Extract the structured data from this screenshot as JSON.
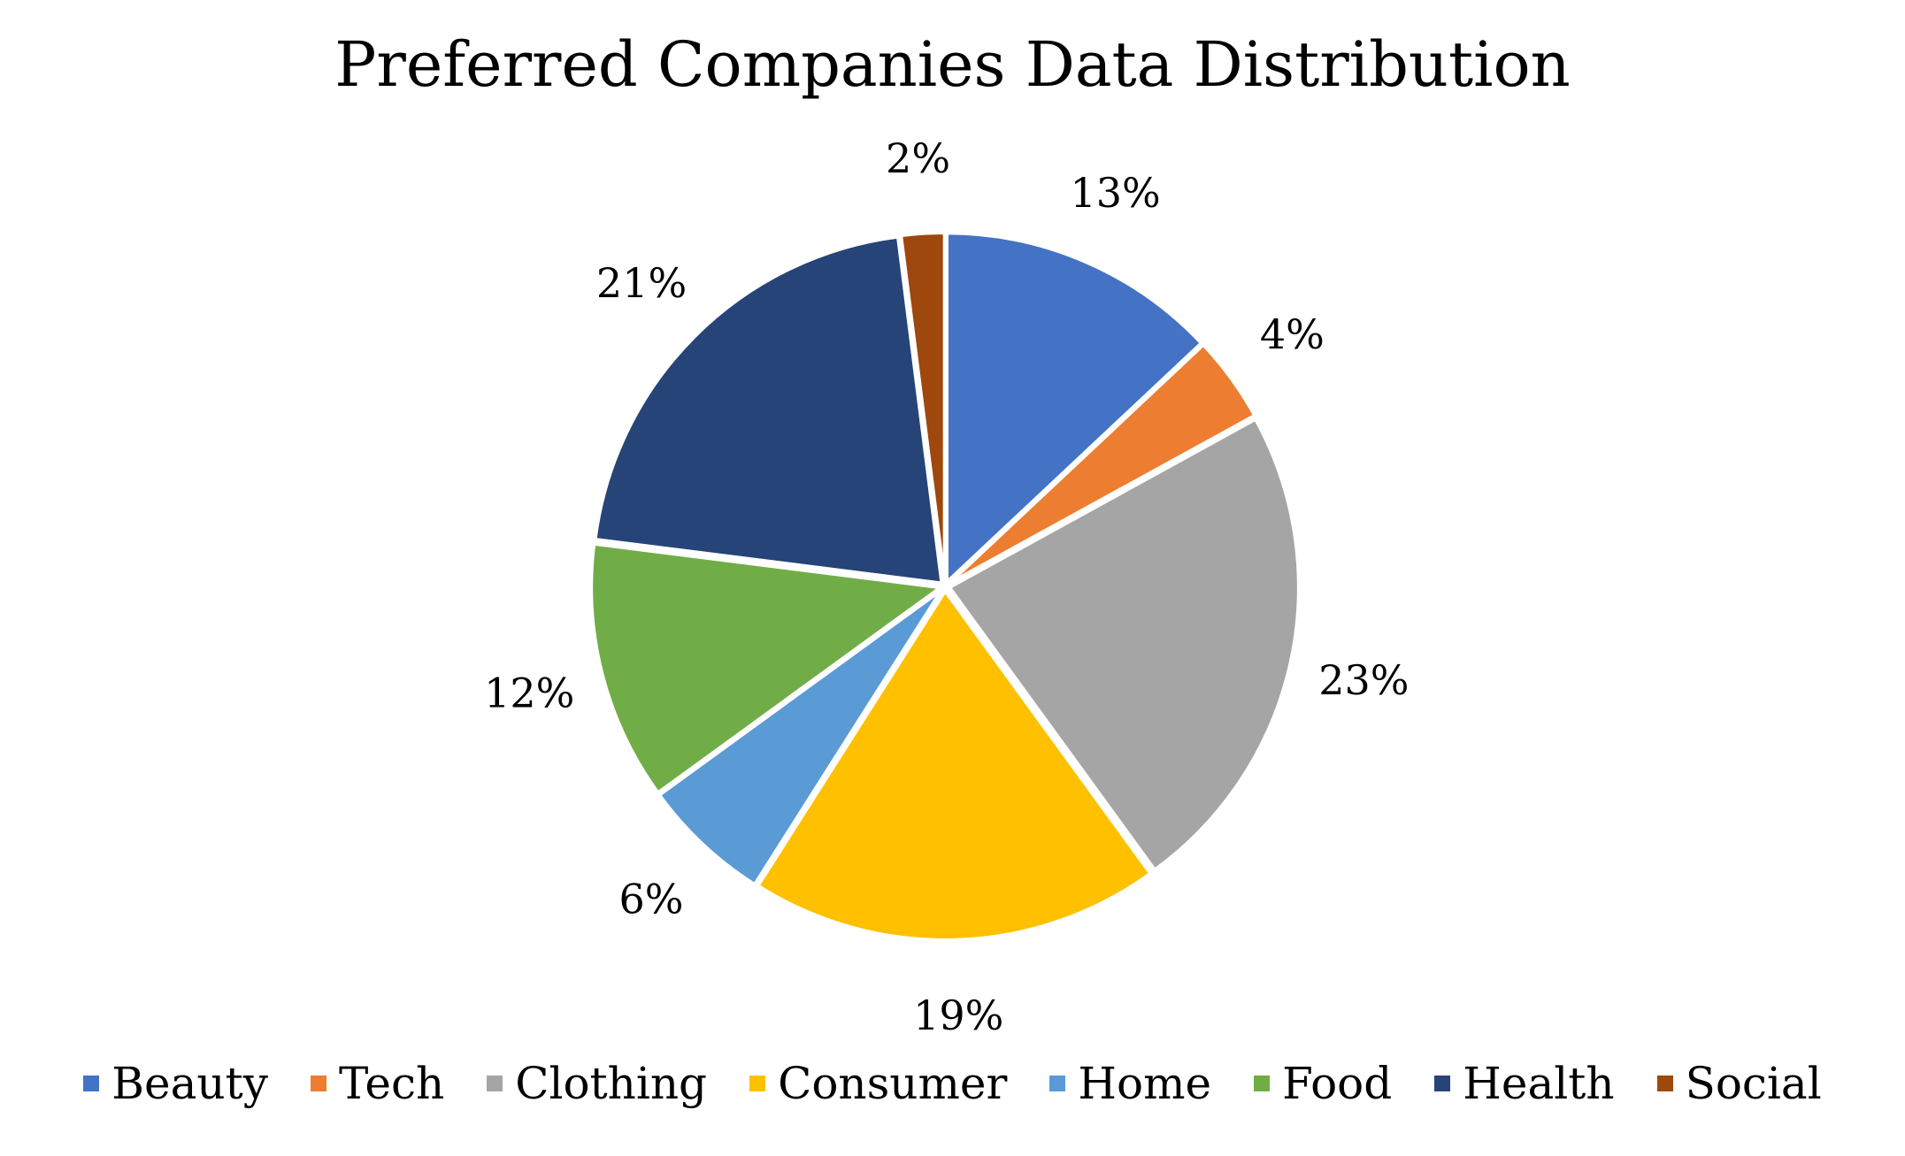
{
  "chart_data": {
    "type": "pie",
    "title": "Preferred Companies Data Distribution",
    "categories": [
      "Beauty",
      "Tech",
      "Clothing",
      "Consumer",
      "Home",
      "Food",
      "Health",
      "Social"
    ],
    "values": [
      13,
      4,
      23,
      19,
      6,
      12,
      21,
      2
    ],
    "labels": [
      "13%",
      "4%",
      "23%",
      "19%",
      "6%",
      "12%",
      "21%",
      "2%"
    ],
    "colors": [
      "#4472C4",
      "#ED7D31",
      "#A5A5A5",
      "#FFC000",
      "#5B9BD5",
      "#70AD47",
      "#264478",
      "#9E480E"
    ],
    "start_angle_deg": 0,
    "direction": "clockwise",
    "exploded": true,
    "legend_position": "bottom"
  }
}
